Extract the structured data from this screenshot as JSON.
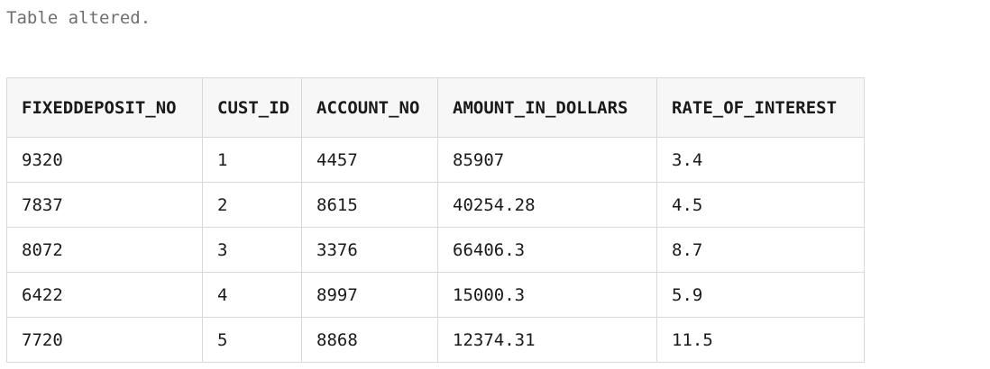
{
  "status_message": "Table altered.",
  "table": {
    "columns": [
      "FIXEDDEPOSIT_NO",
      "CUST_ID",
      "ACCOUNT_NO",
      "AMOUNT_IN_DOLLARS",
      "RATE_OF_INTEREST"
    ],
    "rows": [
      [
        "9320",
        "1",
        "4457",
        "85907",
        "3.4"
      ],
      [
        "7837",
        "2",
        "8615",
        "40254.28",
        "4.5"
      ],
      [
        "8072",
        "3",
        "3376",
        "66406.3",
        "8.7"
      ],
      [
        "6422",
        "4",
        "8997",
        "15000.3",
        "5.9"
      ],
      [
        "7720",
        "5",
        "8868",
        "12374.31",
        "11.5"
      ]
    ]
  }
}
